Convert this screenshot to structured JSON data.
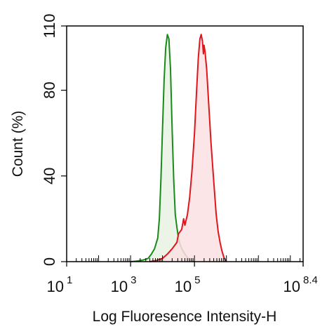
{
  "chart_data": {
    "type": "area",
    "xlabel": "Log Fluoresence Intensity-H",
    "ylabel": "Count  (%)",
    "x_scale": "log10",
    "xlim": [
      1,
      8.4
    ],
    "ylim": [
      0,
      110
    ],
    "x_ticks": [
      {
        "base": "10",
        "exp": "1",
        "value": 1
      },
      {
        "base": "10",
        "exp": "3",
        "value": 3
      },
      {
        "base": "10",
        "exp": "5",
        "value": 5
      },
      {
        "base": "10",
        "exp": "8.4",
        "value": 8.4
      }
    ],
    "y_ticks": [
      {
        "label": "0",
        "value": 0
      },
      {
        "label": "40",
        "value": 40
      },
      {
        "label": "80",
        "value": 80
      },
      {
        "label": "110",
        "value": 110
      }
    ],
    "grid": false,
    "legend": "none",
    "series": [
      {
        "color": "#1a8a1a",
        "fill": "#e8f2e3",
        "points": [
          [
            3.0,
            0
          ],
          [
            3.2,
            0.3
          ],
          [
            3.4,
            0.8
          ],
          [
            3.55,
            1.5
          ],
          [
            3.65,
            3.5
          ],
          [
            3.75,
            6
          ],
          [
            3.85,
            11
          ],
          [
            3.9,
            20
          ],
          [
            3.95,
            38
          ],
          [
            4.0,
            62
          ],
          [
            4.05,
            85
          ],
          [
            4.1,
            100
          ],
          [
            4.15,
            106
          ],
          [
            4.2,
            104
          ],
          [
            4.25,
            90
          ],
          [
            4.3,
            62
          ],
          [
            4.35,
            38
          ],
          [
            4.4,
            22
          ],
          [
            4.45,
            16
          ],
          [
            4.5,
            11
          ],
          [
            4.55,
            8
          ],
          [
            4.62,
            5.5
          ],
          [
            4.68,
            4
          ],
          [
            4.75,
            2.5
          ],
          [
            4.82,
            1
          ],
          [
            4.9,
            0.3
          ],
          [
            5.0,
            0
          ]
        ]
      },
      {
        "color": "#e0161d",
        "fill": "#fbe1e3",
        "points": [
          [
            3.6,
            0
          ],
          [
            3.8,
            0.5
          ],
          [
            4.0,
            1.5
          ],
          [
            4.15,
            3.5
          ],
          [
            4.3,
            6
          ],
          [
            4.4,
            8
          ],
          [
            4.45,
            9
          ],
          [
            4.5,
            13
          ],
          [
            4.6,
            15
          ],
          [
            4.66,
            20
          ],
          [
            4.7,
            17
          ],
          [
            4.78,
            22
          ],
          [
            4.85,
            30
          ],
          [
            4.92,
            42
          ],
          [
            5.0,
            60
          ],
          [
            5.06,
            78
          ],
          [
            5.12,
            95
          ],
          [
            5.17,
            104
          ],
          [
            5.21,
            106
          ],
          [
            5.25,
            103
          ],
          [
            5.28,
            97
          ],
          [
            5.3,
            101
          ],
          [
            5.33,
            98
          ],
          [
            5.38,
            90
          ],
          [
            5.44,
            75
          ],
          [
            5.52,
            55
          ],
          [
            5.6,
            38
          ],
          [
            5.68,
            22
          ],
          [
            5.74,
            14
          ],
          [
            5.8,
            9
          ],
          [
            5.86,
            5
          ],
          [
            5.92,
            2
          ],
          [
            6.0,
            0
          ]
        ]
      }
    ]
  }
}
